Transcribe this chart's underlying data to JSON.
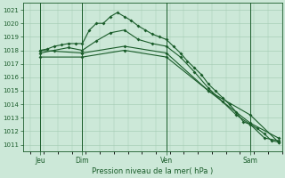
{
  "background_color": "#cce8d8",
  "grid_color": "#a0c8b0",
  "line_color": "#1a5c2a",
  "xlabel": "Pression niveau de la mer( hPa )",
  "ylim": [
    1010.5,
    1021.5
  ],
  "yticks": [
    1011,
    1012,
    1013,
    1014,
    1015,
    1016,
    1017,
    1018,
    1019,
    1020,
    1021
  ],
  "xlim": [
    -2,
    72
  ],
  "day_positions": [
    3,
    15,
    39,
    63
  ],
  "day_labels": [
    "Jeu",
    "Dim",
    "Ven",
    "Sam"
  ],
  "vline_positions": [
    3,
    15,
    39,
    63
  ],
  "series1_x": [
    3,
    5,
    7,
    9,
    11,
    13,
    15,
    17,
    19,
    21,
    23,
    25,
    27,
    29,
    31,
    33,
    35,
    37,
    39,
    41,
    43,
    45,
    47,
    49,
    51,
    53,
    55,
    57,
    59,
    61,
    63,
    65,
    67,
    69,
    71
  ],
  "series1_y": [
    1018.0,
    1018.1,
    1018.3,
    1018.4,
    1018.5,
    1018.5,
    1018.5,
    1019.5,
    1020.0,
    1020.0,
    1020.5,
    1020.8,
    1020.5,
    1020.2,
    1019.8,
    1019.5,
    1019.2,
    1019.0,
    1018.8,
    1018.3,
    1017.8,
    1017.2,
    1016.7,
    1016.2,
    1015.5,
    1015.0,
    1014.5,
    1014.0,
    1013.4,
    1012.7,
    1012.5,
    1012.2,
    1011.8,
    1011.3,
    1011.2
  ],
  "series2_x": [
    3,
    7,
    11,
    15,
    19,
    23,
    27,
    31,
    35,
    39,
    43,
    47,
    51,
    55,
    59,
    63,
    67,
    71
  ],
  "series2_y": [
    1017.8,
    1018.0,
    1018.2,
    1018.0,
    1018.7,
    1019.3,
    1019.5,
    1018.8,
    1018.5,
    1018.3,
    1017.5,
    1016.4,
    1015.2,
    1014.2,
    1013.2,
    1012.5,
    1011.5,
    1011.3
  ],
  "series3_x": [
    3,
    15,
    27,
    39,
    51,
    63,
    71
  ],
  "series3_y": [
    1018.0,
    1017.8,
    1018.3,
    1017.8,
    1015.0,
    1012.6,
    1011.5
  ],
  "series4_x": [
    3,
    15,
    27,
    39,
    51,
    63,
    71
  ],
  "series4_y": [
    1017.5,
    1017.5,
    1018.0,
    1017.5,
    1015.0,
    1013.2,
    1011.2
  ]
}
